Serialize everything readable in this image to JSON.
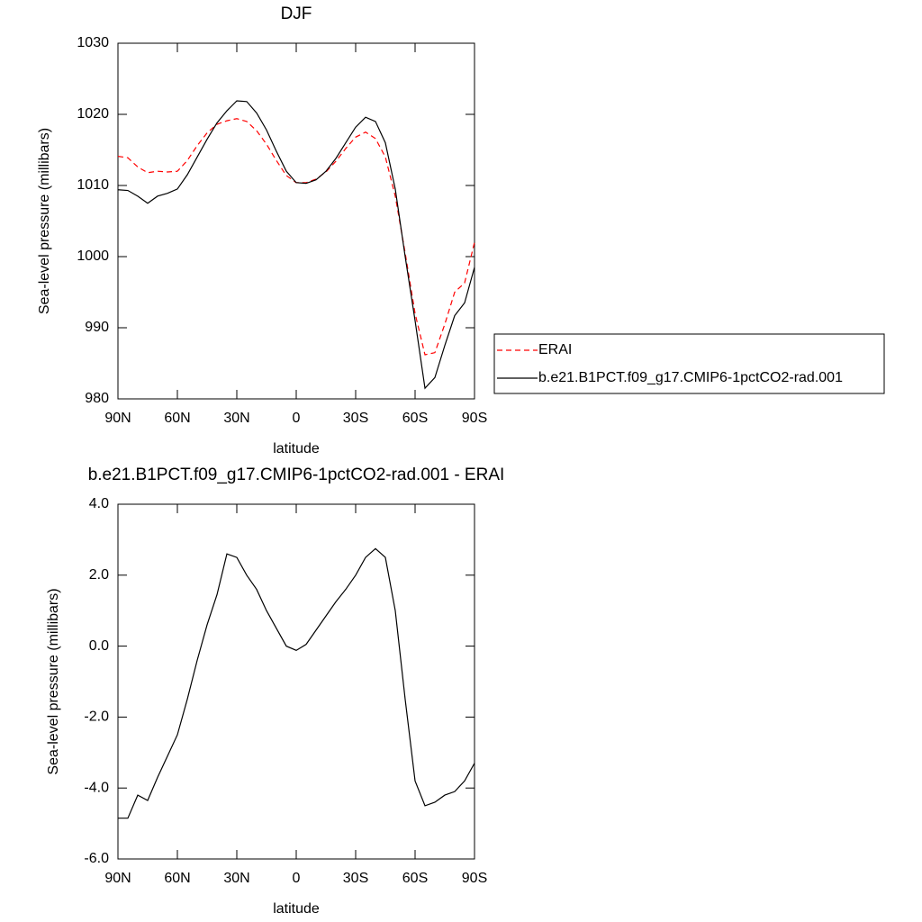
{
  "chart_data": [
    {
      "type": "line",
      "title": "DJF",
      "xlabel": "latitude",
      "ylabel": "Sea-level pressure (millibars)",
      "x": [
        90,
        85,
        80,
        75,
        70,
        65,
        60,
        55,
        50,
        45,
        40,
        35,
        30,
        25,
        20,
        15,
        10,
        5,
        0,
        -5,
        -10,
        -15,
        -20,
        -25,
        -30,
        -35,
        -40,
        -45,
        -50,
        -55,
        -60,
        -65,
        -70,
        -75,
        -80,
        -85,
        -90
      ],
      "series": [
        {
          "name": "ERAI",
          "color": "#ff0000",
          "line_style": "dashed",
          "values": [
            1014.1,
            1013.9,
            1012.6,
            1011.8,
            1012.0,
            1011.9,
            1012.0,
            1013.5,
            1015.6,
            1017.4,
            1018.6,
            1019.1,
            1019.4,
            1019.0,
            1017.7,
            1015.8,
            1013.5,
            1011.4,
            1010.4,
            1010.4,
            1010.9,
            1011.9,
            1013.4,
            1015.2,
            1016.8,
            1017.5,
            1016.6,
            1014.0,
            1008.5,
            1000.5,
            992.0,
            986.2,
            986.5,
            990.5,
            995.0,
            996.3,
            1002.0
          ]
        },
        {
          "name": "b.e21.B1PCT.f09_g17.CMIP6-1pctCO2-rad.001",
          "color": "#000000",
          "line_style": "solid",
          "values": [
            1009.4,
            1009.3,
            1008.5,
            1007.5,
            1008.5,
            1008.9,
            1009.5,
            1011.5,
            1014.0,
            1016.5,
            1018.8,
            1020.5,
            1021.9,
            1021.8,
            1020.2,
            1017.8,
            1014.8,
            1012.0,
            1010.4,
            1010.3,
            1010.8,
            1012.0,
            1013.8,
            1016.0,
            1018.2,
            1019.6,
            1019.0,
            1016.0,
            1009.5,
            1000.0,
            991.0,
            981.5,
            983.0,
            987.5,
            991.7,
            993.5,
            998.5
          ]
        }
      ],
      "xlim": [
        90,
        -90
      ],
      "xticks": [
        {
          "value": 90,
          "label": "90N"
        },
        {
          "value": 60,
          "label": "60N"
        },
        {
          "value": 30,
          "label": "30N"
        },
        0,
        {
          "value": -30,
          "label": "30S"
        },
        {
          "value": -60,
          "label": "60S"
        },
        {
          "value": -90,
          "label": "90S"
        }
      ],
      "ylim": [
        980,
        1030
      ],
      "yticks": [
        980,
        990,
        1000,
        1010,
        1020,
        1030
      ],
      "legend": "right"
    },
    {
      "type": "line",
      "title": "b.e21.B1PCT.f09_g17.CMIP6-1pctCO2-rad.001 - ERAI",
      "xlabel": "latitude",
      "ylabel": "Sea-level pressure (millibars)",
      "x": [
        90,
        85,
        80,
        75,
        70,
        65,
        60,
        55,
        50,
        45,
        40,
        35,
        30,
        25,
        20,
        15,
        10,
        5,
        0,
        -5,
        -10,
        -15,
        -20,
        -25,
        -30,
        -35,
        -40,
        -45,
        -50,
        -55,
        -60,
        -65,
        -70,
        -75,
        -80,
        -85,
        -90
      ],
      "values": [
        -4.85,
        -4.85,
        -4.2,
        -4.35,
        -3.7,
        -3.1,
        -2.5,
        -1.5,
        -0.4,
        0.6,
        1.45,
        2.6,
        2.5,
        2.0,
        1.6,
        1.0,
        0.5,
        0.0,
        -0.12,
        0.05,
        0.45,
        0.85,
        1.25,
        1.6,
        2.0,
        2.5,
        2.75,
        2.5,
        1.0,
        -1.5,
        -3.8,
        -4.5,
        -4.4,
        -4.2,
        -4.1,
        -3.8,
        -3.3
      ],
      "color": "#000000",
      "xlim": [
        90,
        -90
      ],
      "xticks": [
        {
          "value": 90,
          "label": "90N"
        },
        {
          "value": 60,
          "label": "60N"
        },
        {
          "value": 30,
          "label": "30N"
        },
        0,
        {
          "value": -30,
          "label": "30S"
        },
        {
          "value": -60,
          "label": "60S"
        },
        {
          "value": -90,
          "label": "90S"
        }
      ],
      "ylim": [
        -6,
        4
      ],
      "yticks": [
        {
          "value": -6,
          "label": "-6.0"
        },
        {
          "value": -4,
          "label": "-4.0"
        },
        {
          "value": -2,
          "label": "-2.0"
        },
        {
          "value": 0,
          "label": "0.0"
        },
        {
          "value": 2,
          "label": "2.0"
        },
        {
          "value": 4,
          "label": "4.0"
        }
      ]
    }
  ]
}
